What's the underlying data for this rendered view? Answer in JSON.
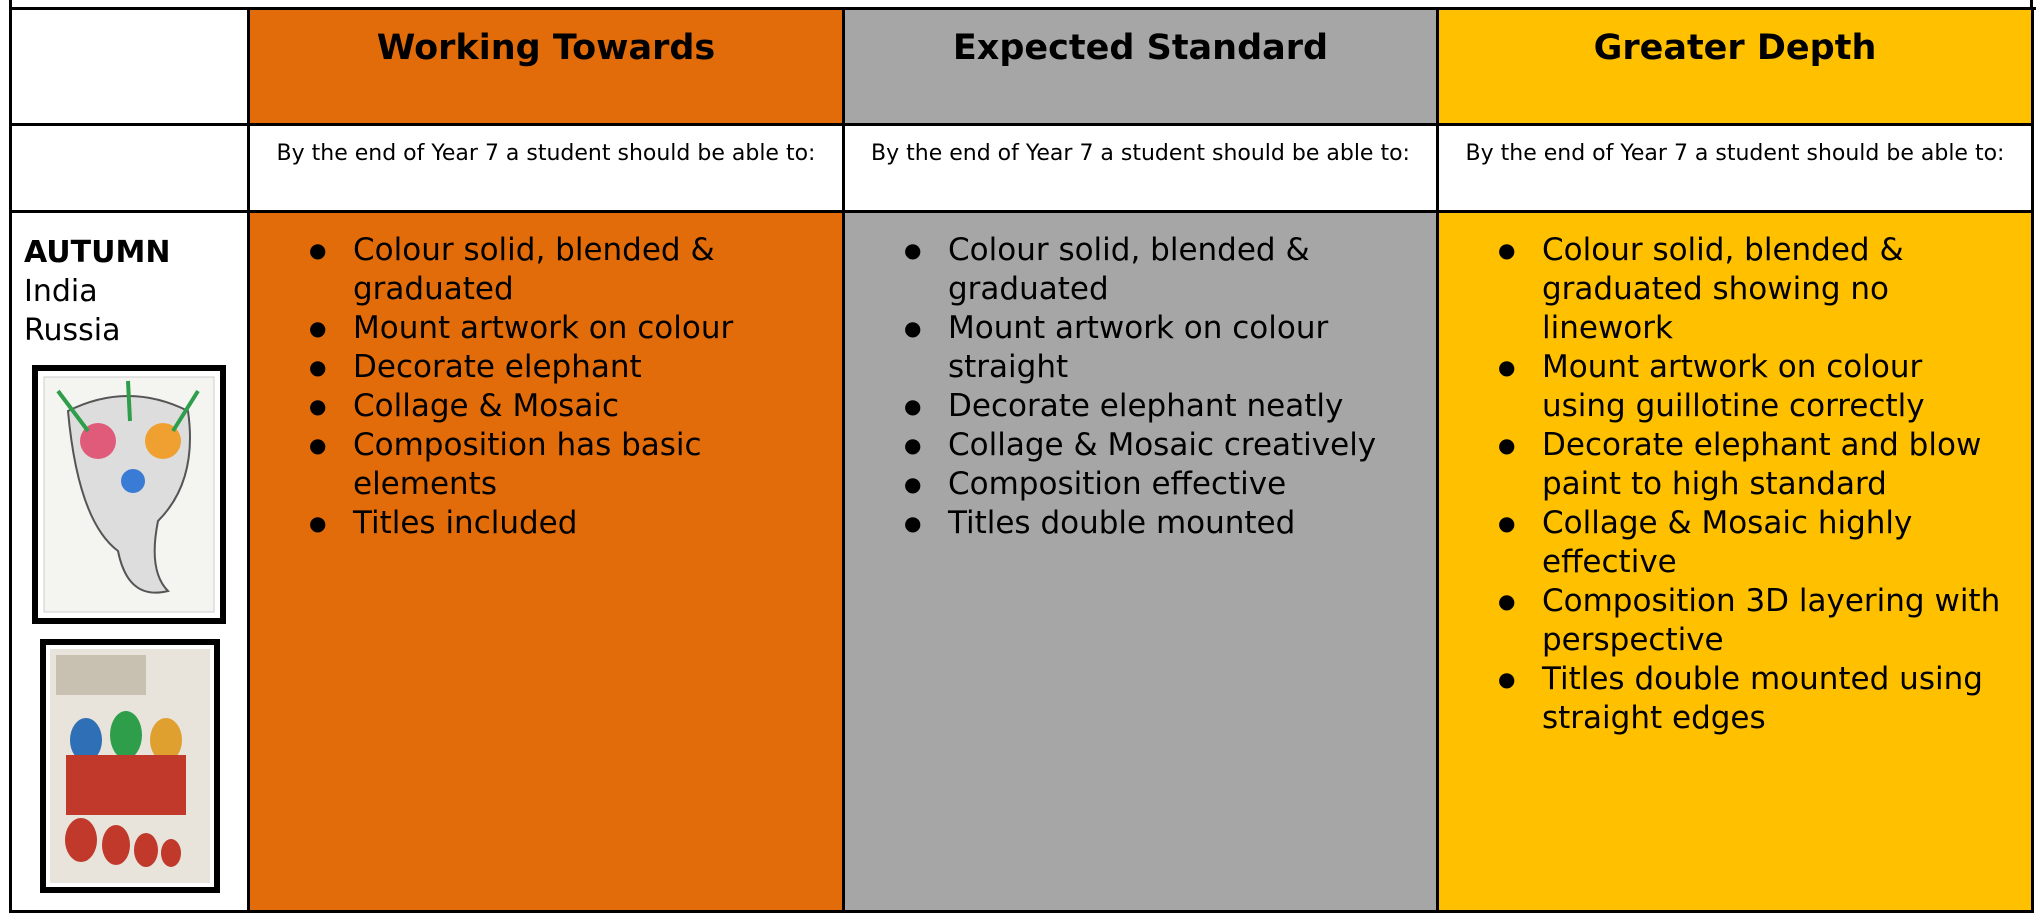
{
  "table": {
    "header": [
      "Working Towards",
      "Expected Standard",
      "Greater Depth"
    ],
    "subheader": [
      "By the end of Year 7 a student should be able to:",
      "By the end of Year 7 a student should be able to:",
      "By the end of Year 7 a student should be able to:"
    ],
    "row": {
      "season": "AUTUMN",
      "topics": [
        "India",
        "Russia"
      ],
      "columns": [
        [
          "Colour solid, blended & graduated",
          "Mount artwork on colour",
          "Decorate elephant",
          "Collage & Mosaic",
          "Composition has basic elements",
          "Titles included"
        ],
        [
          "Colour solid, blended & graduated",
          "Mount artwork on colour straight",
          "Decorate elephant neatly",
          "Collage & Mosaic creatively",
          "Composition effective",
          "Titles double mounted"
        ],
        [
          "Colour solid, blended & graduated showing no linework",
          "Mount artwork on colour using guillotine correctly",
          "Decorate elephant and blow paint to high standard",
          "Collage & Mosaic highly effective",
          "Composition 3D layering with perspective",
          "Titles double mounted using straight edges"
        ]
      ]
    }
  }
}
